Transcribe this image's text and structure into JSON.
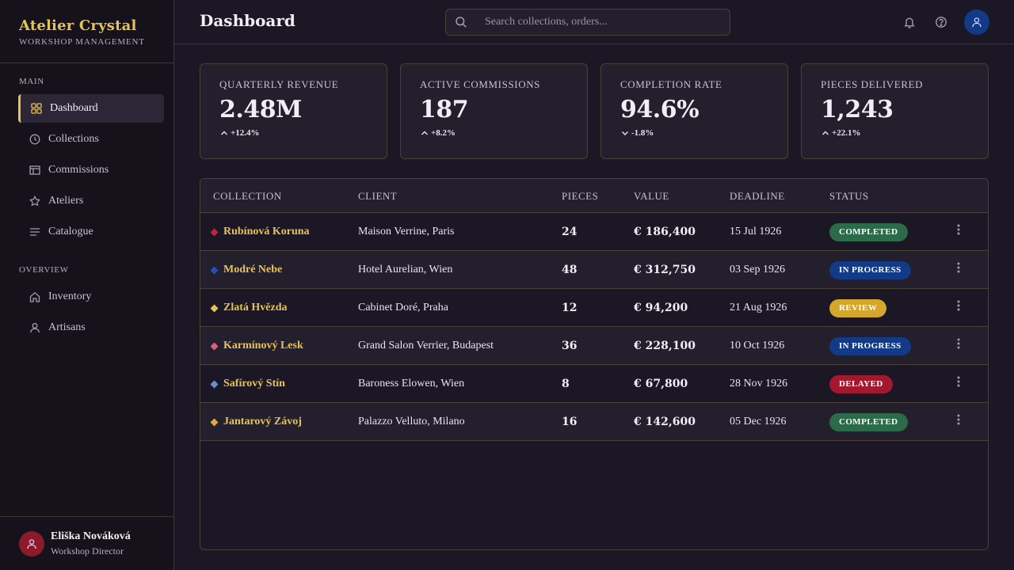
{
  "brand": {
    "title": "Atelier Crystal",
    "subtitle": "WORKSHOP MANAGEMENT"
  },
  "sidebar": {
    "sections": [
      {
        "label": "MAIN"
      },
      {
        "label": "OVERVIEW"
      }
    ],
    "items": [
      {
        "label": "Dashboard",
        "icon": "grid-icon",
        "active": true
      },
      {
        "label": "Collections",
        "icon": "clock-icon"
      },
      {
        "label": "Commissions",
        "icon": "table-icon"
      },
      {
        "label": "Ateliers",
        "icon": "star-icon"
      },
      {
        "label": "Catalogue",
        "icon": "list-icon"
      },
      {
        "label": "Inventory",
        "icon": "home-icon"
      },
      {
        "label": "Artisans",
        "icon": "person-icon"
      }
    ],
    "user": {
      "name": "Eliška Nováková",
      "role": "Workshop Director"
    }
  },
  "header": {
    "title": "Dashboard",
    "search_placeholder": "Search collections, orders..."
  },
  "kpis": [
    {
      "label": "QUARTERLY REVENUE",
      "value": "2.48M",
      "delta": "+12.4%",
      "direction": "up"
    },
    {
      "label": "ACTIVE COMMISSIONS",
      "value": "187",
      "delta": "+8.2%",
      "direction": "up"
    },
    {
      "label": "COMPLETION RATE",
      "value": "94.6%",
      "delta": "-1.8%",
      "direction": "down"
    },
    {
      "label": "PIECES DELIVERED",
      "value": "1,243",
      "delta": "+22.1%",
      "direction": "up"
    }
  ],
  "table": {
    "columns": [
      "COLLECTION",
      "CLIENT",
      "PIECES",
      "VALUE",
      "DEADLINE",
      "STATUS"
    ],
    "rows": [
      {
        "collection": "Rubínová Koruna",
        "gem_color": "#c0243a",
        "client": "Maison Verrine, Paris",
        "pieces": "24",
        "value": "€ 186,400",
        "deadline": "15 Jul 1926",
        "status": "COMPLETED",
        "status_color": "#2b6b4a"
      },
      {
        "collection": "Modré Nebe",
        "gem_color": "#1f4fb8",
        "client": "Hotel Aurelian, Wien",
        "pieces": "48",
        "value": "€ 312,750",
        "deadline": "03 Sep 1926",
        "status": "IN PROGRESS",
        "status_color": "#123a86"
      },
      {
        "collection": "Zlatá Hvězda",
        "gem_color": "#e8c255",
        "client": "Cabinet Doré, Praha",
        "pieces": "12",
        "value": "€ 94,200",
        "deadline": "21 Aug 1926",
        "status": "REVIEW",
        "status_color": "#d4a72c"
      },
      {
        "collection": "Karmínový Lesk",
        "gem_color": "#d9627a",
        "client": "Grand Salon Verrier, Budapest",
        "pieces": "36",
        "value": "€ 228,100",
        "deadline": "10 Oct 1926",
        "status": "IN PROGRESS",
        "status_color": "#123a86"
      },
      {
        "collection": "Safírový Stín",
        "gem_color": "#6b8fd6",
        "client": "Baroness Elowen, Wien",
        "pieces": "8",
        "value": "€ 67,800",
        "deadline": "28 Nov 1926",
        "status": "DELAYED",
        "status_color": "#a3182f"
      },
      {
        "collection": "Jantarový Závoj",
        "gem_color": "#e0a93a",
        "client": "Palazzo Velluto, Milano",
        "pieces": "16",
        "value": "€ 142,600",
        "deadline": "05 Dec 1926",
        "status": "COMPLETED",
        "status_color": "#2b6b4a"
      }
    ]
  },
  "colors": {
    "accent": "#e8c255",
    "background": "#1c1725",
    "sidebar": "#15121b",
    "border": "#4a4033"
  }
}
